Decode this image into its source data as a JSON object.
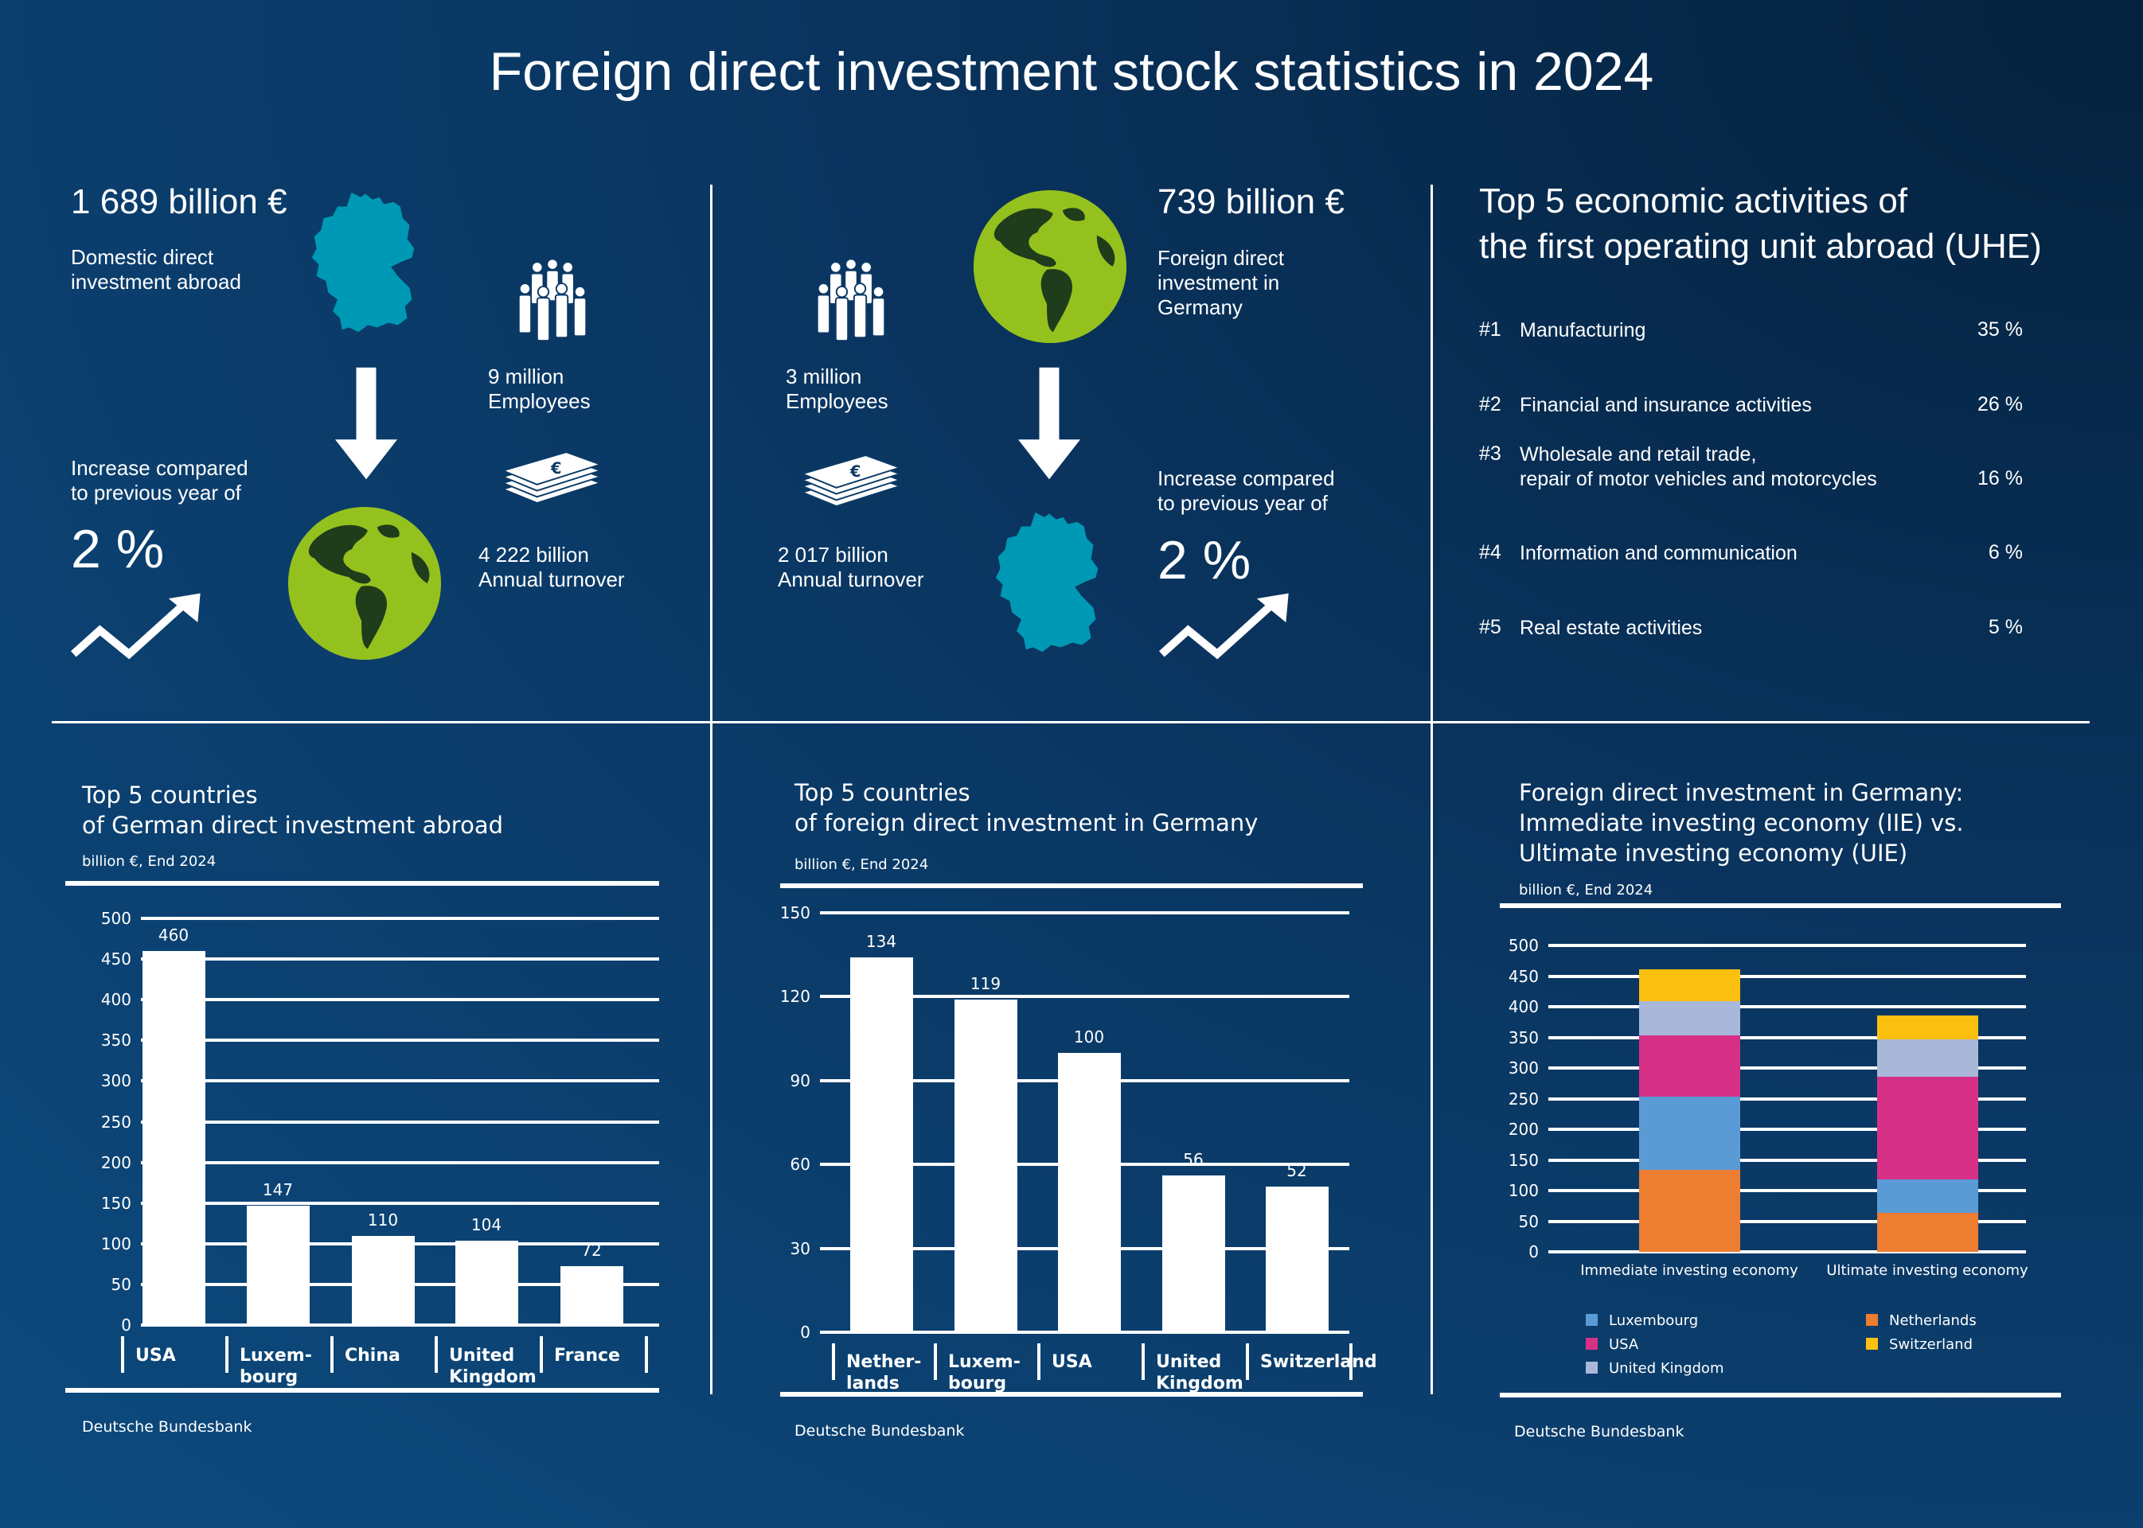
{
  "title": "Foreign direct investment stock statistics in 2024",
  "colors": {
    "globe_green": "#95c11f",
    "map_teal": "#0099b5"
  },
  "outward": {
    "amount": "1 689 billion €",
    "label": "Domestic direct\ninvestment abroad",
    "employees": "9 million\nEmployees",
    "turnover": "4 222 billion\nAnnual turnover",
    "increase_label": "Increase compared\nto previous year of",
    "increase_value": "2 %"
  },
  "inward": {
    "amount": "739 billion €",
    "label": "Foreign direct\ninvestment in\nGermany",
    "employees": "3 million\nEmployees",
    "turnover": "2 017 billion\nAnnual turnover",
    "increase_label": "Increase compared\nto previous year of",
    "increase_value": "2 %"
  },
  "activities": {
    "title": "Top 5 economic activities of\nthe first operating unit abroad (UHE)",
    "items": [
      {
        "rank": "#1",
        "label": "Manufacturing",
        "share": "35 %"
      },
      {
        "rank": "#2",
        "label": "Financial and insurance activities",
        "share": "26 %"
      },
      {
        "rank": "#3",
        "label": "Wholesale and retail trade,\nrepair of motor vehicles and motorcycles",
        "share": "16 %"
      },
      {
        "rank": "#4",
        "label": "Information and communication",
        "share": "6 %"
      },
      {
        "rank": "#5",
        "label": "Real estate activities",
        "share": "5 %"
      }
    ]
  },
  "chart_data": [
    {
      "type": "bar",
      "title": "Top 5 countries\nof German direct investment abroad",
      "subtitle": "billion €, End 2024",
      "categories": [
        "USA",
        "Luxem-\nbourg",
        "China",
        "United\nKingdom",
        "France"
      ],
      "values": [
        460,
        147,
        110,
        104,
        72
      ],
      "ylim": [
        0,
        500
      ],
      "yticks": [
        "0",
        "50",
        "100",
        "150",
        "200",
        "250",
        "300",
        "350",
        "400",
        "450",
        "500"
      ],
      "grid": true,
      "source": "Deutsche Bundesbank"
    },
    {
      "type": "bar",
      "title": "Top 5 countries\nof foreign direct investment in Germany",
      "subtitle": "billion €, End 2024",
      "categories": [
        "Nether-\nlands",
        "Luxem-\nbourg",
        "USA",
        "United\nKingdom",
        "Switzerland"
      ],
      "values": [
        134,
        119,
        100,
        56,
        52
      ],
      "ylim": [
        0,
        150
      ],
      "yticks": [
        "0",
        "30",
        "60",
        "90",
        "120",
        "150"
      ],
      "grid": true,
      "source": "Deutsche Bundesbank"
    },
    {
      "type": "bar",
      "stacked": true,
      "title": "Foreign direct investment in Germany:\nImmediate investing economy (IIE) vs.\nUltimate investing economy (UIE)",
      "subtitle": "billion €, End 2024",
      "categories": [
        "Immediate investing economy",
        "Ultimate investing economy"
      ],
      "series": [
        {
          "name": "Netherlands",
          "color": "#ed7d31",
          "values": [
            134,
            64
          ]
        },
        {
          "name": "Luxembourg",
          "color": "#5b9bd5",
          "values": [
            119,
            54
          ]
        },
        {
          "name": "USA",
          "color": "#d63087",
          "values": [
            100,
            168
          ]
        },
        {
          "name": "United Kingdom",
          "color": "#a9b8d9",
          "values": [
            56,
            61
          ]
        },
        {
          "name": "Switzerland",
          "color": "#fbbf10",
          "values": [
            52,
            39
          ]
        }
      ],
      "legend_order": [
        "Luxembourg",
        "USA",
        "United Kingdom",
        "Netherlands",
        "Switzerland"
      ],
      "legend_position": "bottom",
      "ylim": [
        0,
        500
      ],
      "yticks": [
        "0",
        "50",
        "100",
        "150",
        "200",
        "250",
        "300",
        "350",
        "400",
        "450",
        "500"
      ],
      "grid": true,
      "source": "Deutsche Bundesbank"
    }
  ]
}
